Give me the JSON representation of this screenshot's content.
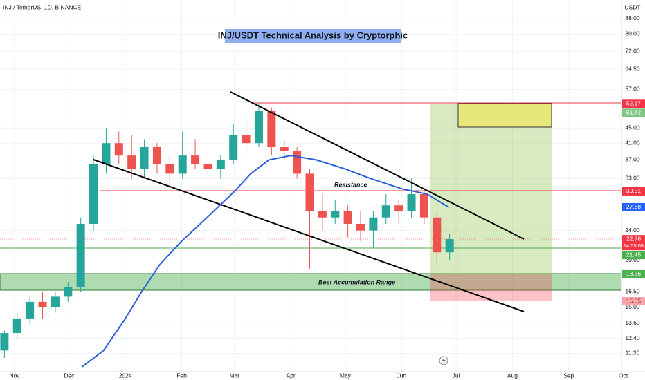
{
  "chart_data": {
    "type": "candlestick",
    "header": "INJ / TetherUS, 1D, BINANCE",
    "title": "INJ/USDT Technical Analysis by Cryptorphic",
    "currency": "USDT",
    "countdown": "14:55:08",
    "annotations": [
      "Resistance",
      "Best Accumulation Range"
    ],
    "log_scale": true,
    "grid": true,
    "up_color": "#26a69a",
    "down_color": "#ef5350",
    "xlim": [
      "2023-10-24",
      "2024-09-30"
    ],
    "xticks": [
      {
        "value": "2023-11-01",
        "label": "Nov"
      },
      {
        "value": "2023-12-01",
        "label": "Dec"
      },
      {
        "value": "2024-01-01",
        "label": "2024"
      },
      {
        "value": "2024-02-01",
        "label": "Feb"
      },
      {
        "value": "2024-03-01",
        "label": "Mar"
      },
      {
        "value": "2024-04-01",
        "label": "Apr"
      },
      {
        "value": "2024-05-01",
        "label": "May"
      },
      {
        "value": "2024-06-01",
        "label": "Jun"
      },
      {
        "value": "2024-07-01",
        "label": "Jul"
      },
      {
        "value": "2024-08-01",
        "label": "Aug"
      },
      {
        "value": "2024-09-01",
        "label": "Sep"
      },
      {
        "value": "2024-10-01",
        "label": "Oct"
      }
    ],
    "ylim": [
      10.1,
      98.6
    ],
    "yticks": [
      {
        "value": 11.3,
        "label": "11.30"
      },
      {
        "value": 12.4,
        "label": "12.40"
      },
      {
        "value": 13.6,
        "label": "13.60"
      },
      {
        "value": 15,
        "label": "15.00"
      },
      {
        "value": 16.5,
        "label": "16.50"
      },
      {
        "value": 20,
        "label": "20.00"
      },
      {
        "value": 24,
        "label": "24.00"
      },
      {
        "value": 33,
        "label": "33.00"
      },
      {
        "value": 37,
        "label": "37.00"
      },
      {
        "value": 41,
        "label": "41.00"
      },
      {
        "value": 45,
        "label": "45.00"
      },
      {
        "value": 57,
        "label": "57.00"
      },
      {
        "value": 64.5,
        "label": "64.50"
      },
      {
        "value": 72,
        "label": "72.00"
      },
      {
        "value": 80,
        "label": "80.00"
      },
      {
        "value": 88,
        "label": "88.00"
      }
    ],
    "x": [
      "2023-10-23",
      "2023-10-30",
      "2023-11-06",
      "2023-11-13",
      "2023-11-20",
      "2023-11-27",
      "2023-12-04",
      "2023-12-11",
      "2023-12-18",
      "2023-12-25",
      "2024-01-01",
      "2024-01-08",
      "2024-01-15",
      "2024-01-22",
      "2024-01-29",
      "2024-02-05",
      "2024-02-12",
      "2024-02-19",
      "2024-02-26",
      "2024-03-04",
      "2024-03-11",
      "2024-03-18",
      "2024-03-25",
      "2024-04-01",
      "2024-04-08",
      "2024-04-15",
      "2024-04-22",
      "2024-04-29",
      "2024-05-06",
      "2024-05-13",
      "2024-05-20",
      "2024-05-27",
      "2024-06-03",
      "2024-06-10",
      "2024-06-17",
      "2024-06-24"
    ],
    "open": [
      11.5,
      12.8,
      14,
      15.5,
      15,
      16,
      17,
      25,
      36,
      41,
      38,
      35,
      40,
      36,
      34,
      38,
      36,
      35,
      37,
      43,
      41,
      50,
      40,
      39,
      34,
      27,
      26,
      27,
      25,
      24,
      26,
      28,
      27,
      30,
      26,
      21
    ],
    "high": [
      13,
      14.5,
      16,
      16.5,
      16.5,
      17.5,
      26,
      38,
      45,
      44,
      43,
      42,
      41,
      38,
      44,
      42,
      39,
      38,
      46,
      48,
      52.5,
      51,
      42,
      40,
      35,
      30,
      29,
      28,
      27,
      27,
      30,
      29,
      33,
      31,
      27,
      23.5
    ],
    "low": [
      11,
      12.3,
      13.5,
      14,
      14.5,
      15.5,
      16.5,
      24,
      34,
      36,
      33,
      33,
      34,
      31,
      33,
      35,
      33,
      33,
      36,
      38,
      40,
      38,
      37,
      33,
      19,
      24,
      25,
      23,
      22.5,
      21.5,
      25,
      25,
      26,
      25,
      19.5,
      20
    ],
    "close": [
      12.8,
      14,
      15.5,
      15,
      16,
      17,
      25,
      36,
      41,
      38,
      35,
      40,
      36,
      34,
      38,
      36,
      35,
      37,
      43,
      41,
      50,
      40,
      39,
      34,
      27,
      26,
      27,
      25,
      24,
      26,
      28,
      27,
      30,
      26,
      21,
      22.76
    ],
    "moving_average": {
      "color": "#2b5fd9",
      "x": [
        "2023-12-08",
        "2023-12-20",
        "2024-01-01",
        "2024-01-10",
        "2024-01-20",
        "2024-02-01",
        "2024-02-15",
        "2024-03-01",
        "2024-03-10",
        "2024-03-20",
        "2024-04-01",
        "2024-04-15",
        "2024-05-01",
        "2024-05-15",
        "2024-06-01",
        "2024-06-15",
        "2024-06-27"
      ],
      "values": [
        10.4,
        11.5,
        14,
        16.5,
        19.5,
        22.5,
        26,
        30.5,
        34,
        37,
        38,
        37,
        35,
        33,
        31,
        30,
        27.68
      ]
    },
    "price_tags": [
      {
        "value": 52.17,
        "color": "#f23645",
        "text_color": "#ffffff"
      },
      {
        "value": 51.72,
        "color": "#81c784",
        "text_color": "#ffffff"
      },
      {
        "value": 30.51,
        "color": "#f23645",
        "text_color": "#ffffff"
      },
      {
        "value": 27.68,
        "color": "#2962ff",
        "text_color": "#ffffff"
      },
      {
        "value": 22.76,
        "color": "#f23645",
        "text_color": "#ffffff"
      },
      {
        "value": 21.45,
        "color": "#4caf50",
        "text_color": "#ffffff"
      },
      {
        "value": 18.36,
        "color": "#4caf50",
        "text_color": "#ffffff"
      },
      {
        "value": 15.55,
        "color": "#f5a5ab",
        "text_color": "#b71c1c"
      }
    ]
  }
}
